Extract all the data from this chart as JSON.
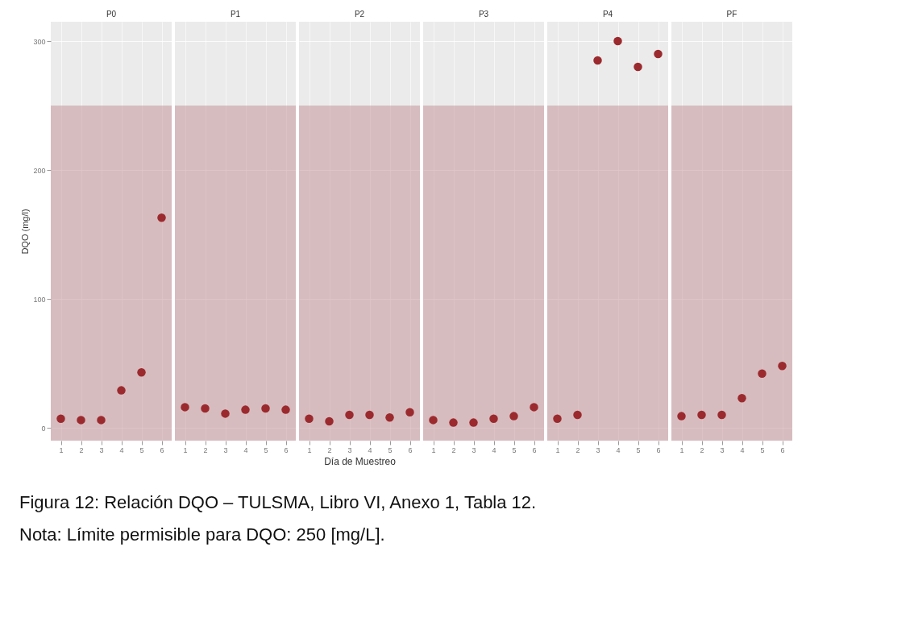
{
  "chart_data": [
    {
      "type": "scatter",
      "title": "P0",
      "ylabel": "DQO (mg/l)",
      "annotations": [
        "Figura 12: Relación DQO – TULSMA, Libro VI, Anexo 1, Tabla 12.",
        "Nota: Límite permisible para DQO: 250 [mg/L]."
      ],
      "categories": [
        "1",
        "2",
        "3",
        "4",
        "5",
        "6"
      ],
      "values": [
        7,
        6,
        6,
        29,
        43,
        163
      ],
      "color": "#9b2a2e",
      "marker": "circle",
      "ylim": [
        -10,
        315
      ],
      "yticks": [
        0,
        100,
        200,
        300
      ],
      "grid": true,
      "bands": [
        {
          "axis": "y",
          "from": -10,
          "to": 250,
          "color": "#c48e93"
        }
      ]
    },
    {
      "type": "scatter",
      "title": "P1",
      "categories": [
        "1",
        "2",
        "3",
        "4",
        "5",
        "6"
      ],
      "values": [
        16,
        15,
        11,
        14,
        15,
        14
      ],
      "color": "#9b2a2e",
      "marker": "circle",
      "ylim": [
        -10,
        315
      ],
      "yticks": [
        0,
        100,
        200,
        300
      ],
      "grid": true,
      "tick_labels": "x",
      "bands": [
        {
          "axis": "y",
          "from": -10,
          "to": 250,
          "color": "#c48e93"
        }
      ]
    },
    {
      "type": "scatter",
      "title": "P2",
      "xlabel": "Día de Muestreo",
      "categories": [
        "1",
        "2",
        "3",
        "4",
        "5",
        "6"
      ],
      "values": [
        7,
        5,
        10,
        10,
        8,
        12
      ],
      "color": "#9b2a2e",
      "marker": "circle",
      "ylim": [
        -10,
        315
      ],
      "yticks": [
        0,
        100,
        200,
        300
      ],
      "grid": true,
      "tick_labels": "x",
      "bands": [
        {
          "axis": "y",
          "from": -10,
          "to": 250,
          "color": "#c48e93"
        }
      ]
    },
    {
      "type": "scatter",
      "title": "P3",
      "categories": [
        "1",
        "2",
        "3",
        "4",
        "5",
        "6"
      ],
      "values": [
        6,
        4,
        4,
        7,
        9,
        16
      ],
      "color": "#9b2a2e",
      "marker": "circle",
      "ylim": [
        -10,
        315
      ],
      "yticks": [
        0,
        100,
        200,
        300
      ],
      "grid": true,
      "tick_labels": "x",
      "bands": [
        {
          "axis": "y",
          "from": -10,
          "to": 250,
          "color": "#c48e93"
        }
      ]
    },
    {
      "type": "scatter",
      "title": "P4",
      "categories": [
        "1",
        "2",
        "3",
        "4",
        "5",
        "6"
      ],
      "values": [
        7,
        10,
        285,
        300,
        280,
        290
      ],
      "color": "#9b2a2e",
      "marker": "circle",
      "ylim": [
        -10,
        315
      ],
      "yticks": [
        0,
        100,
        200,
        300
      ],
      "grid": true,
      "tick_labels": "x",
      "bands": [
        {
          "axis": "y",
          "from": -10,
          "to": 250,
          "color": "#c48e93"
        }
      ]
    },
    {
      "type": "scatter",
      "title": "PF",
      "categories": [
        "1",
        "2",
        "3",
        "4",
        "5",
        "6"
      ],
      "values": [
        9,
        10,
        10,
        23,
        42,
        48
      ],
      "color": "#9b2a2e",
      "marker": "circle",
      "ylim": [
        -10,
        315
      ],
      "yticks": [
        0,
        100,
        200,
        300
      ],
      "grid": true,
      "tick_labels": "x",
      "bands": [
        {
          "axis": "y",
          "from": -10,
          "to": 250,
          "color": "#c48e93"
        }
      ]
    }
  ]
}
